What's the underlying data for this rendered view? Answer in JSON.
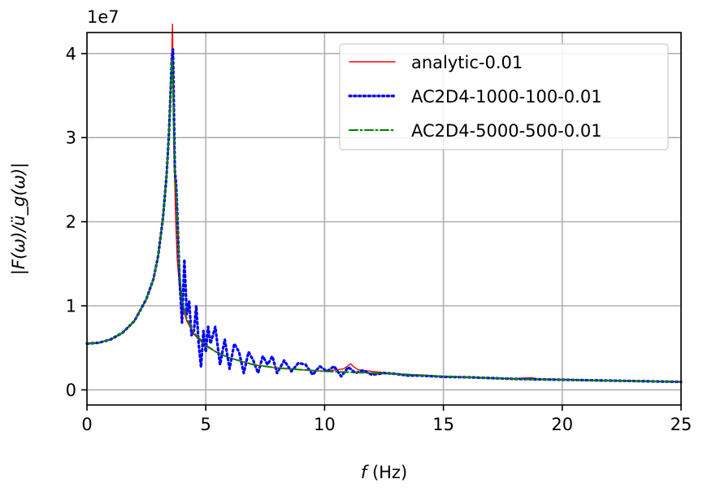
{
  "chart_data": {
    "type": "line",
    "title": "",
    "xlabel_var": "f",
    "xlabel_unit": " (Hz)",
    "ylabel": "|F(ω)/ü_g(ω)|",
    "y_multiplier": "1e7",
    "xlim": [
      0,
      25
    ],
    "ylim": [
      -0.18,
      4.25
    ],
    "x_ticks": [
      0,
      5,
      10,
      15,
      20,
      25
    ],
    "y_ticks": [
      0,
      1,
      2,
      3,
      4
    ],
    "grid": true,
    "legend_position": "top-right",
    "series": [
      {
        "name": "analytic-0.01",
        "color": "#ff0000",
        "style": "solid",
        "x": [
          0,
          0.5,
          1,
          1.5,
          2,
          2.5,
          2.8,
          3.0,
          3.2,
          3.35,
          3.45,
          3.52,
          3.57,
          3.6,
          3.63,
          3.66,
          3.68,
          3.7,
          3.72,
          3.75,
          3.8,
          3.9,
          4.0,
          4.2,
          4.5,
          5.0,
          5.5,
          6,
          7,
          8,
          9,
          10,
          10.8,
          11.0,
          11.1,
          11.2,
          11.4,
          12,
          13,
          14,
          15,
          16,
          17,
          18,
          18.7,
          19,
          20,
          21,
          22,
          23,
          24,
          25
        ],
        "y": [
          0.55,
          0.56,
          0.6,
          0.68,
          0.82,
          1.08,
          1.32,
          1.6,
          2.05,
          2.55,
          3.05,
          3.55,
          4.0,
          4.35,
          3.6,
          2.8,
          2.6,
          2.4,
          2.15,
          1.9,
          1.55,
          1.2,
          1.0,
          0.82,
          0.66,
          0.52,
          0.44,
          0.38,
          0.3,
          0.26,
          0.24,
          0.22,
          0.25,
          0.29,
          0.31,
          0.28,
          0.24,
          0.22,
          0.19,
          0.175,
          0.16,
          0.15,
          0.14,
          0.135,
          0.145,
          0.13,
          0.125,
          0.115,
          0.11,
          0.105,
          0.1,
          0.095
        ]
      },
      {
        "name": "AC2D4-1000-100-0.01",
        "color": "#0000ff",
        "style": "dotted",
        "x": [
          0,
          0.5,
          1,
          1.5,
          2,
          2.5,
          2.8,
          3.0,
          3.2,
          3.35,
          3.45,
          3.52,
          3.57,
          3.62,
          3.66,
          3.7,
          3.75,
          3.8,
          3.9,
          4.0,
          4.1,
          4.2,
          4.3,
          4.4,
          4.5,
          4.6,
          4.7,
          4.8,
          4.9,
          5.0,
          5.1,
          5.2,
          5.4,
          5.6,
          5.8,
          6.0,
          6.2,
          6.4,
          6.6,
          6.8,
          7.0,
          7.2,
          7.4,
          7.6,
          7.8,
          8.0,
          8.3,
          8.6,
          8.9,
          9.2,
          9.5,
          9.8,
          10.1,
          10.4,
          10.7,
          11.0,
          11.3,
          11.6,
          12,
          12.5,
          13,
          13.5,
          14,
          15,
          16,
          17,
          18,
          19,
          20,
          21,
          22,
          23,
          24,
          25
        ],
        "y": [
          0.55,
          0.56,
          0.6,
          0.68,
          0.82,
          1.08,
          1.32,
          1.6,
          2.05,
          2.55,
          3.05,
          3.55,
          3.95,
          4.05,
          3.3,
          2.6,
          2.45,
          2.1,
          1.3,
          0.8,
          1.55,
          0.9,
          1.05,
          0.65,
          0.7,
          1.0,
          0.55,
          0.27,
          0.7,
          0.45,
          0.75,
          0.55,
          0.75,
          0.3,
          0.6,
          0.25,
          0.55,
          0.45,
          0.2,
          0.45,
          0.35,
          0.2,
          0.4,
          0.3,
          0.4,
          0.2,
          0.35,
          0.22,
          0.32,
          0.3,
          0.18,
          0.28,
          0.22,
          0.28,
          0.16,
          0.27,
          0.2,
          0.23,
          0.18,
          0.2,
          0.19,
          0.17,
          0.17,
          0.155,
          0.15,
          0.14,
          0.13,
          0.125,
          0.12,
          0.115,
          0.11,
          0.105,
          0.1,
          0.095
        ]
      },
      {
        "name": "AC2D4-5000-500-0.01",
        "color": "#008000",
        "style": "dashdot",
        "x": [
          0,
          0.5,
          1,
          1.5,
          2,
          2.5,
          2.8,
          3.0,
          3.2,
          3.35,
          3.45,
          3.52,
          3.57,
          3.62,
          3.66,
          3.7,
          3.75,
          3.8,
          3.9,
          4.0,
          4.2,
          4.5,
          5.0,
          5.5,
          6,
          7,
          8,
          9,
          10,
          11,
          12,
          13,
          14,
          15,
          16,
          17,
          18,
          19,
          20,
          21,
          22,
          23,
          24,
          25
        ],
        "y": [
          0.55,
          0.56,
          0.6,
          0.68,
          0.82,
          1.08,
          1.32,
          1.6,
          2.05,
          2.55,
          3.05,
          3.55,
          3.95,
          3.65,
          3.0,
          2.6,
          2.35,
          2.05,
          1.4,
          1.05,
          0.85,
          0.68,
          0.53,
          0.44,
          0.38,
          0.3,
          0.26,
          0.24,
          0.22,
          0.21,
          0.2,
          0.19,
          0.175,
          0.16,
          0.15,
          0.14,
          0.13,
          0.125,
          0.12,
          0.115,
          0.11,
          0.105,
          0.1,
          0.095
        ]
      }
    ]
  }
}
